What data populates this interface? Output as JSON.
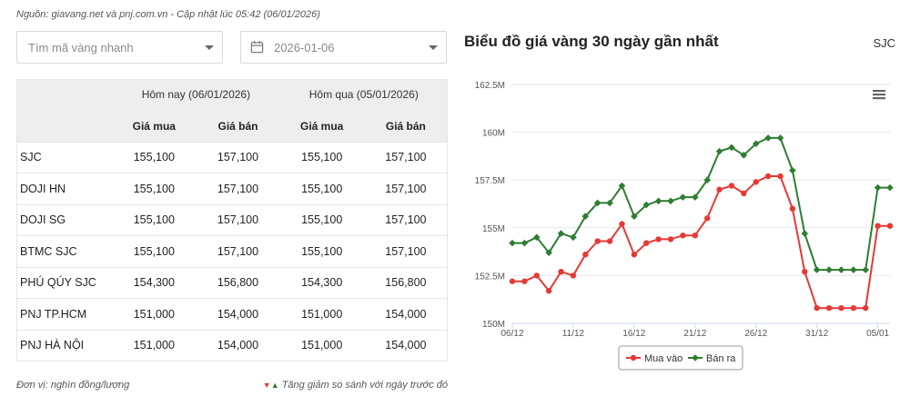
{
  "source_note": "Nguồn: giavang.net và pnj.com.vn - Cập nhật lúc 05:42 (06/01/2026)",
  "search": {
    "placeholder": "Tìm mã vàng nhanh"
  },
  "date_picker": {
    "value": "2026-01-06",
    "icon": "calendar-icon"
  },
  "table": {
    "group_headers": [
      "Hôm nay (06/01/2026)",
      "Hôm qua (05/01/2026)"
    ],
    "sub_headers": [
      "Giá mua",
      "Giá bán",
      "Giá mua",
      "Giá bán"
    ],
    "rows": [
      {
        "name": "SJC",
        "today_buy": "155,100",
        "today_sell": "157,100",
        "yest_buy": "155,100",
        "yest_sell": "157,100"
      },
      {
        "name": "DOJI HN",
        "today_buy": "155,100",
        "today_sell": "157,100",
        "yest_buy": "155,100",
        "yest_sell": "157,100"
      },
      {
        "name": "DOJI SG",
        "today_buy": "155,100",
        "today_sell": "157,100",
        "yest_buy": "155,100",
        "yest_sell": "157,100"
      },
      {
        "name": "BTMC SJC",
        "today_buy": "155,100",
        "today_sell": "157,100",
        "yest_buy": "155,100",
        "yest_sell": "157,100"
      },
      {
        "name": "PHÚ QÚY SJC",
        "today_buy": "154,300",
        "today_sell": "156,800",
        "yest_buy": "154,300",
        "yest_sell": "156,800"
      },
      {
        "name": "PNJ TP.HCM",
        "today_buy": "151,000",
        "today_sell": "154,000",
        "yest_buy": "151,000",
        "yest_sell": "154,000"
      },
      {
        "name": "PNJ HÀ NỘI",
        "today_buy": "151,000",
        "today_sell": "154,000",
        "yest_buy": "151,000",
        "yest_sell": "154,000"
      }
    ]
  },
  "footer": {
    "unit": "Đơn vị: nghìn đồng/lượng",
    "change_note": "Tăng giảm so sánh với ngày trước đó"
  },
  "chart_title": "Biểu đồ giá vàng 30 ngày gần nhất",
  "chart_brand": "SJC",
  "chart_data": {
    "type": "line",
    "title": "",
    "xlabel": "",
    "ylabel": "",
    "ylim": [
      150000000,
      162500000
    ],
    "y_ticks": [
      "150M",
      "152.5M",
      "155M",
      "157.5M",
      "160M",
      "162.5M"
    ],
    "x_ticks": [
      "06/12",
      "11/12",
      "16/12",
      "21/12",
      "26/12",
      "31/12",
      "05/01"
    ],
    "grid": true,
    "legend_position": "bottom",
    "x": [
      "06/12",
      "07/12",
      "08/12",
      "09/12",
      "10/12",
      "11/12",
      "12/12",
      "13/12",
      "14/12",
      "15/12",
      "16/12",
      "17/12",
      "18/12",
      "19/12",
      "20/12",
      "21/12",
      "22/12",
      "23/12",
      "24/12",
      "25/12",
      "26/12",
      "27/12",
      "28/12",
      "29/12",
      "30/12",
      "31/12",
      "01/01",
      "02/01",
      "03/01",
      "04/01",
      "05/01",
      "06/01"
    ],
    "series": [
      {
        "name": "Mua vào",
        "color": "#e53935",
        "values": [
          152200000,
          152200000,
          152500000,
          151700000,
          152700000,
          152500000,
          153600000,
          154300000,
          154300000,
          155200000,
          153600000,
          154200000,
          154400000,
          154400000,
          154600000,
          154600000,
          155500000,
          157000000,
          157200000,
          156800000,
          157400000,
          157700000,
          157700000,
          156000000,
          152700000,
          150800000,
          150800000,
          150800000,
          150800000,
          150800000,
          155100000,
          155100000
        ]
      },
      {
        "name": "Bán ra",
        "color": "#2e7d32",
        "values": [
          154200000,
          154200000,
          154500000,
          153700000,
          154700000,
          154500000,
          155600000,
          156300000,
          156300000,
          157200000,
          155600000,
          156200000,
          156400000,
          156400000,
          156600000,
          156600000,
          157500000,
          159000000,
          159200000,
          158800000,
          159400000,
          159700000,
          159700000,
          158000000,
          154700000,
          152800000,
          152800000,
          152800000,
          152800000,
          152800000,
          157100000,
          157100000
        ]
      }
    ]
  }
}
